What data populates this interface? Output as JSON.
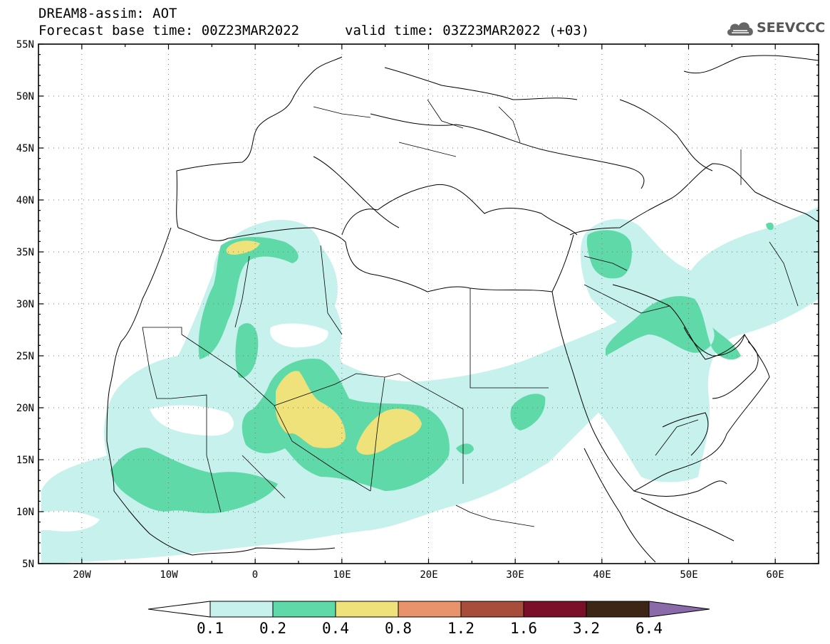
{
  "header": {
    "title": "DREAM8-assim: AOT",
    "base_time": "Forecast base time: 00Z23MAR2022",
    "valid_time": "valid time: 03Z23MAR2022 (+03)"
  },
  "logo": {
    "text": "SEEVCCC",
    "icon": "cloud-icon"
  },
  "map": {
    "lon_range": [
      -25,
      65
    ],
    "lat_range": [
      5,
      55
    ],
    "lat_ticks": [
      "55N",
      "50N",
      "45N",
      "40N",
      "35N",
      "30N",
      "25N",
      "20N",
      "15N",
      "10N",
      "5N"
    ],
    "lon_ticks": [
      "20W",
      "10W",
      "0",
      "10E",
      "20E",
      "30E",
      "40E",
      "50E",
      "60E"
    ],
    "grid": true,
    "variable": "AOT"
  },
  "colorbar": {
    "levels": [
      "0.1",
      "0.2",
      "0.4",
      "0.8",
      "1.2",
      "1.6",
      "3.2",
      "6.4"
    ],
    "colors": [
      "#c6f1ec",
      "#5fd9a7",
      "#efe27a",
      "#e8936b",
      "#a84d3c",
      "#7b0f2a",
      "#3d2615",
      "#8a6aa8"
    ],
    "below_color": "#ffffff"
  }
}
